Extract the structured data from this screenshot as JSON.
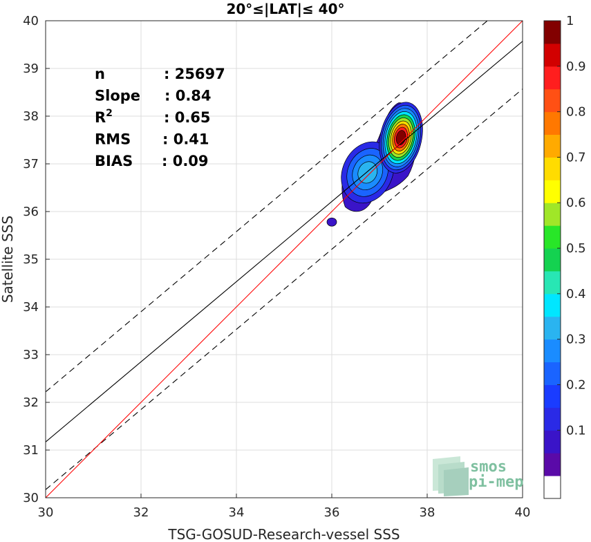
{
  "chart_data": {
    "type": "contour-scatter",
    "title": "20°≤|LAT|≤ 40°",
    "xlabel": "TSG-GOSUD-Research-vessel SSS",
    "ylabel": "Satellite SSS",
    "xlim": [
      30,
      40
    ],
    "ylim": [
      30,
      40
    ],
    "xticks": [
      30,
      32,
      34,
      36,
      38,
      40
    ],
    "yticks": [
      30,
      31,
      32,
      33,
      34,
      35,
      36,
      37,
      38,
      39,
      40
    ],
    "grid": true,
    "stats": [
      {
        "label": "n",
        "value": ": 25697"
      },
      {
        "label": "Slope",
        "value": ": 0.84"
      },
      {
        "label": "R",
        "sup": "2",
        "value": ": 0.65"
      },
      {
        "label": "RMS",
        "value": ": 0.41"
      },
      {
        "label": "BIAS",
        "value": ": 0.09"
      }
    ],
    "lines": {
      "one_to_one": {
        "color": "#ff0000",
        "x": [
          30,
          40
        ],
        "y": [
          30,
          40
        ]
      },
      "regression": {
        "color": "#000000",
        "x": [
          30,
          40
        ],
        "y": [
          31.17,
          39.57
        ]
      },
      "upper_bound": {
        "color": "#000000",
        "dash": true,
        "x": [
          30,
          40
        ],
        "y": [
          32.22,
          40.62
        ]
      },
      "lower_bound": {
        "color": "#000000",
        "dash": true,
        "x": [
          30,
          40
        ],
        "y": [
          30.17,
          38.57
        ]
      }
    },
    "density_peaks": [
      {
        "x": 37.45,
        "y": 37.55,
        "value": 1.0
      },
      {
        "x": 36.75,
        "y": 36.82,
        "value": 0.35
      },
      {
        "x": 36.0,
        "y": 35.78,
        "value": 0.08
      }
    ],
    "colorbar": {
      "ticks": [
        "0.1",
        "0.2",
        "0.3",
        "0.4",
        "0.5",
        "0.6",
        "0.7",
        "0.8",
        "0.9",
        "1"
      ],
      "levels": [
        0,
        0.05,
        0.1,
        0.15,
        0.2,
        0.25,
        0.3,
        0.35,
        0.4,
        0.45,
        0.5,
        0.55,
        0.6,
        0.65,
        0.7,
        0.75,
        0.8,
        0.85,
        0.9,
        0.95,
        1.0
      ],
      "colors": [
        "#ffffff",
        "#5a0aa8",
        "#3a14c8",
        "#2a2ae6",
        "#1a3cff",
        "#1a64ff",
        "#1a8cff",
        "#2ab4f0",
        "#00e6ff",
        "#28e6b4",
        "#14d250",
        "#28e628",
        "#a0e628",
        "#ffff00",
        "#ffdc00",
        "#ffaa00",
        "#ff7800",
        "#ff5014",
        "#ff1e1e",
        "#d20000",
        "#820000"
      ]
    }
  },
  "logo": {
    "line1": "smos",
    "line2": "pi-mep"
  }
}
